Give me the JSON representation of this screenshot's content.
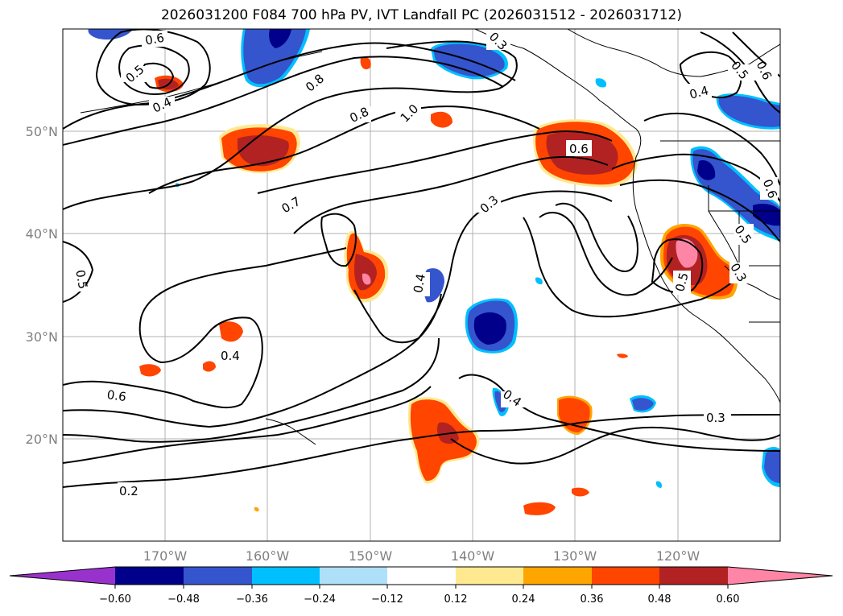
{
  "title": "2026031200 F084 700 hPa PV, IVT Landfall PC (2026031512 - 2026031712)",
  "lat_labels": [
    "50°N",
    "40°N",
    "30°N",
    "20°N"
  ],
  "lon_labels": [
    "170°W",
    "160°W",
    "150°W",
    "140°W",
    "130°W",
    "120°W"
  ],
  "contour_labels": [
    "0.6",
    "0.5",
    "0.4",
    "0.8",
    "0.8",
    "1.0",
    "0.6",
    "0.5",
    "0.6",
    "0.4",
    "0.7",
    "0.3",
    "0.6",
    "0.5",
    "0.4",
    "0.5",
    "0.5",
    "0.3",
    "0.4",
    "0.6",
    "0.4",
    "0.3",
    "0.2",
    "0.3"
  ],
  "colorbar": {
    "ticks": [
      "−0.60",
      "−0.48",
      "−0.36",
      "−0.24",
      "−0.12",
      "0.12",
      "0.24",
      "0.36",
      "0.48",
      "0.60"
    ],
    "colors": [
      "#9932cc",
      "#00008b",
      "#3455cd",
      "#00bfff",
      "#afe0fa",
      "#ffffff",
      "#ffe990",
      "#ffa500",
      "#ff4500",
      "#b22222",
      "#ff85a6"
    ]
  },
  "fill_colors": {
    "neg_light": "#afe0fa",
    "neg_mid": "#00bfff",
    "neg_blue": "#3455cd",
    "neg_dark": "#00008b",
    "pos_yellow": "#ffe990",
    "pos_orange": "#ffa500",
    "pos_red": "#ff4500",
    "pos_dark": "#b22222",
    "pos_pink": "#ff85a6"
  }
}
